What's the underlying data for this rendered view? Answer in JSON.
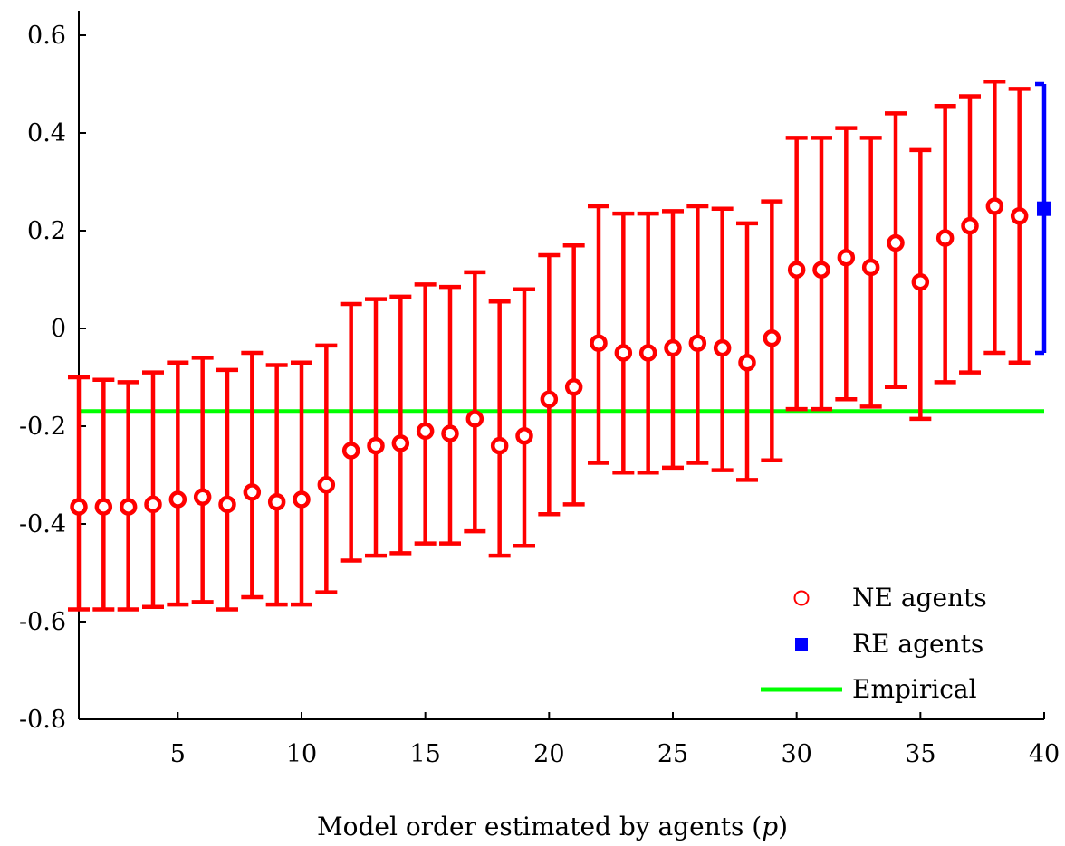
{
  "chart_data": {
    "type": "scatter",
    "title": "",
    "xlabel": "Model order estimated by agents (p)",
    "xlabel_parts": [
      "Model order estimated by agents (",
      "p",
      ")"
    ],
    "ylabel": "",
    "xlim": [
      1,
      40
    ],
    "ylim": [
      -0.8,
      0.65
    ],
    "xticks": [
      5,
      10,
      15,
      20,
      25,
      30,
      35,
      40
    ],
    "xtick_labels": [
      "5",
      "10",
      "15",
      "20",
      "25",
      "30",
      "35",
      "40"
    ],
    "yticks": [
      0.6,
      0.4,
      0.2,
      0,
      -0.2,
      -0.4,
      -0.6,
      -0.8
    ],
    "ytick_labels": [
      "0.6",
      "0.4",
      "0.2",
      "0",
      "-0.2",
      "-0.4",
      "-0.6",
      "-0.8"
    ],
    "grid": false,
    "legend_position": "bottom-right",
    "legend": [
      "NE agents",
      "RE agents",
      "Empirical"
    ],
    "series": [
      {
        "name": "NE agents",
        "color": "#ff0000",
        "marker": "open-circle",
        "x": [
          1,
          2,
          3,
          4,
          5,
          6,
          7,
          8,
          9,
          10,
          11,
          12,
          13,
          14,
          15,
          16,
          17,
          18,
          19,
          20,
          21,
          22,
          23,
          24,
          25,
          26,
          27,
          28,
          29,
          30,
          31,
          32,
          33,
          34,
          35,
          36,
          37,
          38,
          39
        ],
        "y": [
          -0.365,
          -0.365,
          -0.365,
          -0.36,
          -0.35,
          -0.345,
          -0.36,
          -0.335,
          -0.355,
          -0.35,
          -0.32,
          -0.25,
          -0.24,
          -0.235,
          -0.21,
          -0.215,
          -0.185,
          -0.24,
          -0.22,
          -0.145,
          -0.12,
          -0.03,
          -0.05,
          -0.05,
          -0.04,
          -0.03,
          -0.04,
          -0.07,
          -0.02,
          0.12,
          0.12,
          0.145,
          0.125,
          0.175,
          0.095,
          0.185,
          0.21,
          0.25,
          0.23
        ],
        "lower": [
          -0.575,
          -0.575,
          -0.575,
          -0.57,
          -0.565,
          -0.56,
          -0.575,
          -0.55,
          -0.565,
          -0.565,
          -0.54,
          -0.475,
          -0.465,
          -0.46,
          -0.44,
          -0.44,
          -0.415,
          -0.465,
          -0.445,
          -0.38,
          -0.36,
          -0.275,
          -0.295,
          -0.295,
          -0.285,
          -0.275,
          -0.29,
          -0.31,
          -0.27,
          -0.165,
          -0.165,
          -0.145,
          -0.16,
          -0.12,
          -0.185,
          -0.11,
          -0.09,
          -0.05,
          -0.07
        ],
        "upper": [
          -0.1,
          -0.105,
          -0.11,
          -0.09,
          -0.07,
          -0.06,
          -0.085,
          -0.05,
          -0.075,
          -0.07,
          -0.035,
          0.05,
          0.06,
          0.065,
          0.09,
          0.085,
          0.115,
          0.055,
          0.08,
          0.15,
          0.17,
          0.25,
          0.235,
          0.235,
          0.24,
          0.25,
          0.245,
          0.215,
          0.26,
          0.39,
          0.39,
          0.41,
          0.39,
          0.44,
          0.365,
          0.455,
          0.475,
          0.505,
          0.49
        ]
      },
      {
        "name": "RE agents",
        "color": "#0000ff",
        "marker": "filled-square",
        "x": [
          40
        ],
        "y": [
          0.245
        ],
        "lower": [
          -0.05
        ],
        "upper": [
          0.5
        ]
      },
      {
        "name": "Empirical",
        "color": "#00ff00",
        "marker": "line",
        "y": -0.17
      }
    ]
  }
}
